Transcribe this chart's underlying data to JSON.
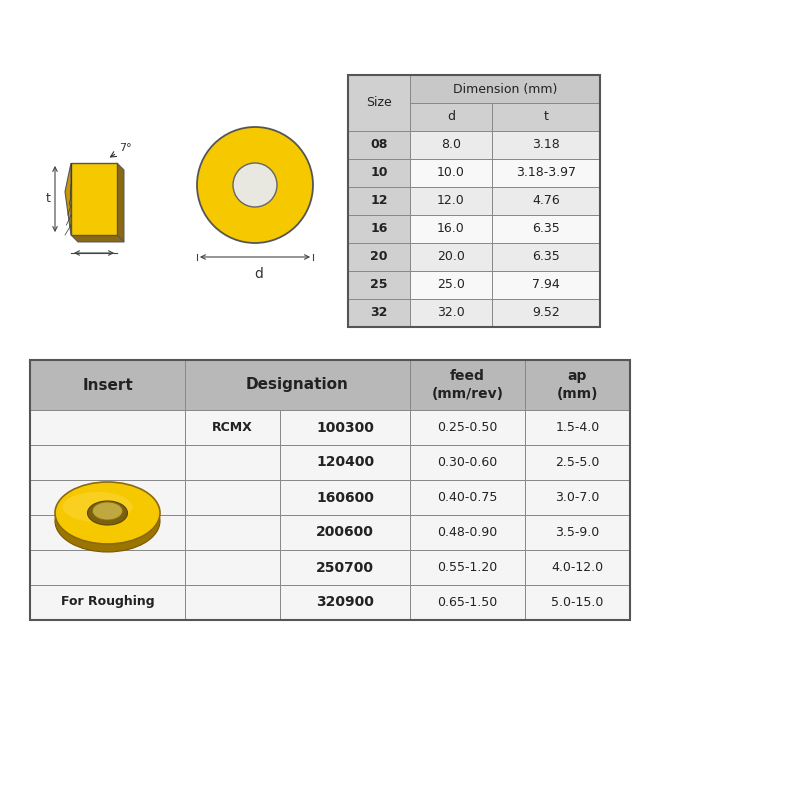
{
  "bg_color": "#ffffff",
  "dim_table": {
    "header_bg": "#c8c8c8",
    "subheader_bg": "#d0d0d0",
    "row_bg_alt": "#ebebeb",
    "row_bg": "#f8f8f8",
    "border_color": "#666666",
    "sizes": [
      "08",
      "10",
      "12",
      "16",
      "20",
      "25",
      "32"
    ],
    "d_vals": [
      "8.0",
      "10.0",
      "12.0",
      "16.0",
      "20.0",
      "25.0",
      "32.0"
    ],
    "t_vals": [
      "3.18",
      "3.18-3.97",
      "4.76",
      "6.35",
      "6.35",
      "7.94",
      "9.52"
    ]
  },
  "insert_table": {
    "header_bg": "#b8b8b8",
    "row_bg": "#f5f5f5",
    "border_color": "#666666",
    "designations": [
      "100300",
      "120400",
      "160600",
      "200600",
      "250700",
      "320900"
    ],
    "prefix": "RCMX",
    "feed_vals": [
      "0.25-0.50",
      "0.30-0.60",
      "0.40-0.75",
      "0.48-0.90",
      "0.55-1.20",
      "0.65-1.50"
    ],
    "ap_vals": [
      "1.5-4.0",
      "2.5-5.0",
      "3.0-7.0",
      "3.5-9.0",
      "4.0-12.0",
      "5.0-15.0"
    ],
    "insert_label": "For Roughing"
  },
  "yellow": "#F5C800",
  "yellow_dark": "#C89800",
  "yellow_shadow": "#8B6914"
}
